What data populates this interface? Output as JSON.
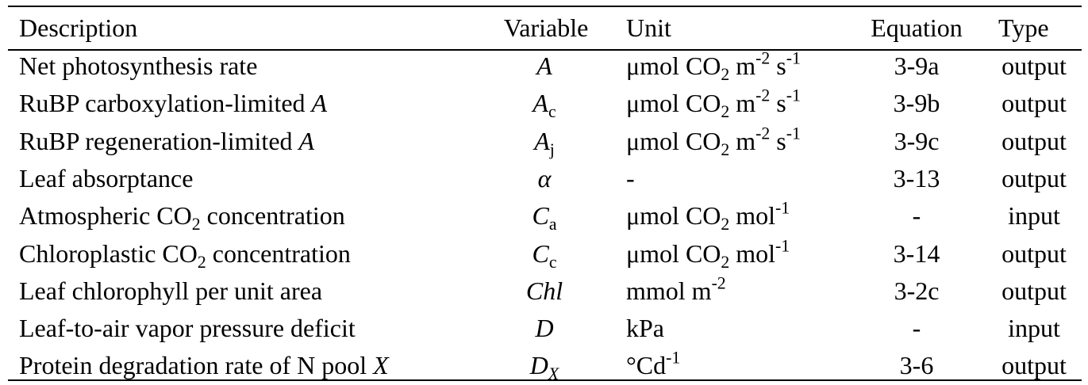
{
  "table": {
    "headers": {
      "description": "Description",
      "variable": "Variable",
      "unit": "Unit",
      "equation": "Equation",
      "type": "Type"
    },
    "rows": [
      {
        "description": [
          "Net photosynthesis rate"
        ],
        "variable": {
          "main": "A",
          "sub": ""
        },
        "unit": [
          "μmol CO",
          {
            "sub": "2"
          },
          " m",
          {
            "sup": "-2"
          },
          " s",
          {
            "sup": "-1"
          }
        ],
        "equation": "3-9a",
        "type": "output"
      },
      {
        "description": [
          "RuBP carboxylation-limited ",
          {
            "i": "A"
          }
        ],
        "variable": {
          "main": "A",
          "sub": "c"
        },
        "unit": [
          "μmol CO",
          {
            "sub": "2"
          },
          " m",
          {
            "sup": "-2"
          },
          " s",
          {
            "sup": "-1"
          }
        ],
        "equation": "3-9b",
        "type": "output"
      },
      {
        "description": [
          "RuBP regeneration-limited ",
          {
            "i": "A"
          }
        ],
        "variable": {
          "main": "A",
          "sub": "j"
        },
        "unit": [
          "μmol CO",
          {
            "sub": "2"
          },
          " m",
          {
            "sup": "-2"
          },
          " s",
          {
            "sup": "-1"
          }
        ],
        "equation": "3-9c",
        "type": "output"
      },
      {
        "description": [
          "Leaf absorptance"
        ],
        "variable": {
          "main": "α",
          "sub": ""
        },
        "unit": [
          "-"
        ],
        "equation": "3-13",
        "type": "output"
      },
      {
        "description": [
          "Atmospheric CO",
          {
            "sub": "2"
          },
          " concentration"
        ],
        "variable": {
          "main": "C",
          "sub": "a"
        },
        "unit": [
          "μmol CO",
          {
            "sub": "2"
          },
          " mol",
          {
            "sup": "-1"
          }
        ],
        "equation": "-",
        "type": "input"
      },
      {
        "description": [
          "Chloroplastic CO",
          {
            "sub": "2"
          },
          " concentration"
        ],
        "variable": {
          "main": "C",
          "sub": "c"
        },
        "unit": [
          "μmol CO",
          {
            "sub": "2"
          },
          " mol",
          {
            "sup": "-1"
          }
        ],
        "equation": "3-14",
        "type": "output"
      },
      {
        "description": [
          "Leaf chlorophyll per unit area"
        ],
        "variable": {
          "main": "Chl",
          "sub": ""
        },
        "unit": [
          "mmol m",
          {
            "sup": "-2"
          }
        ],
        "equation": "3-2c",
        "type": "output"
      },
      {
        "description": [
          "Leaf-to-air vapor pressure deficit"
        ],
        "variable": {
          "main": "D",
          "sub": ""
        },
        "unit": [
          "kPa"
        ],
        "equation": "-",
        "type": "input"
      },
      {
        "description": [
          "Protein degradation rate of N pool ",
          {
            "i": "X"
          }
        ],
        "variable": {
          "main": "D",
          "sub": "X",
          "sub_italic": true
        },
        "unit": [
          "°Cd",
          {
            "sup": "-1"
          }
        ],
        "equation": "3-6",
        "type": "output"
      }
    ]
  }
}
